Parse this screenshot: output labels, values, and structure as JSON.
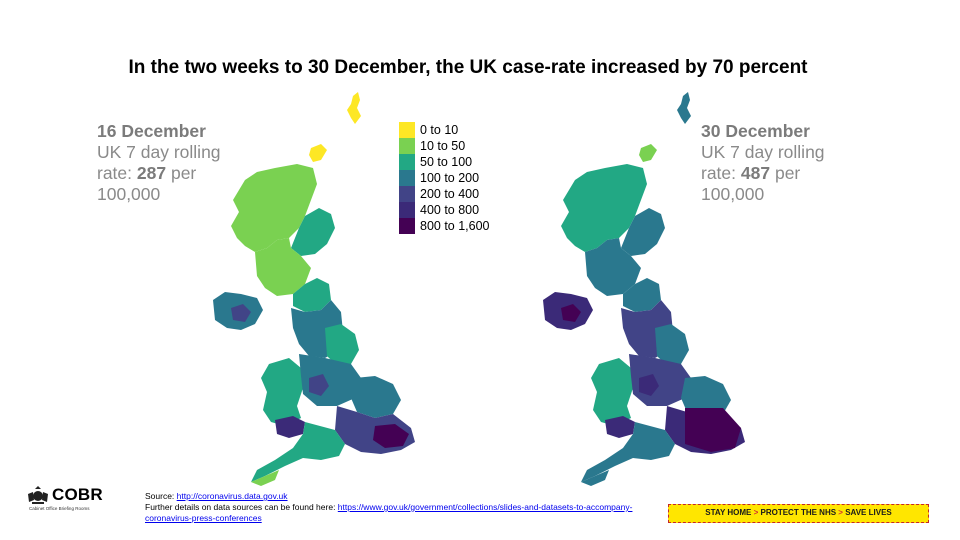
{
  "title": "In the two weeks to 30 December, the UK case-rate increased by 70 percent",
  "left_panel": {
    "date": "16 December",
    "line1": "UK 7 day rolling",
    "rate_prefix": "rate: ",
    "rate_value": "287",
    "rate_suffix": " per",
    "line4": "100,000"
  },
  "right_panel": {
    "date": "30 December",
    "line1": "UK 7 day rolling",
    "rate_prefix": "rate: ",
    "rate_value": "487",
    "rate_suffix": " per",
    "line4": "100,000"
  },
  "legend": [
    {
      "label": "0 to 10",
      "color": "#fde725"
    },
    {
      "label": "10 to 50",
      "color": "#7ad151"
    },
    {
      "label": "50 to 100",
      "color": "#22a884"
    },
    {
      "label": "100 to 200",
      "color": "#2a788e"
    },
    {
      "label": "200 to 400",
      "color": "#414487"
    },
    {
      "label": "400 to 800",
      "color": "#3b2a78"
    },
    {
      "label": "800 to 1,600",
      "color": "#440154"
    }
  ],
  "logo": {
    "name": "COBR",
    "subtitle": "Cabinet Office Briefing Rooms"
  },
  "source": {
    "label": "Source: ",
    "link1": "http://coronavirus.data.gov.uk",
    "details_label": "Further details on data sources can be found here: ",
    "link2": "https://www.gov.uk/government/collections/slides-and-datasets-to-accompany-coronavirus-press-conferences"
  },
  "banner": {
    "part1": "STAY HOME",
    "part2": "PROTECT THE NHS",
    "part3": "SAVE LIVES",
    "separator": ">"
  },
  "colors": {
    "yellow": "#fde725",
    "light_green": "#7ad151",
    "green": "#22a884",
    "teal": "#2a788e",
    "blue": "#414487",
    "indigo": "#3b2a78",
    "purple": "#440154"
  }
}
